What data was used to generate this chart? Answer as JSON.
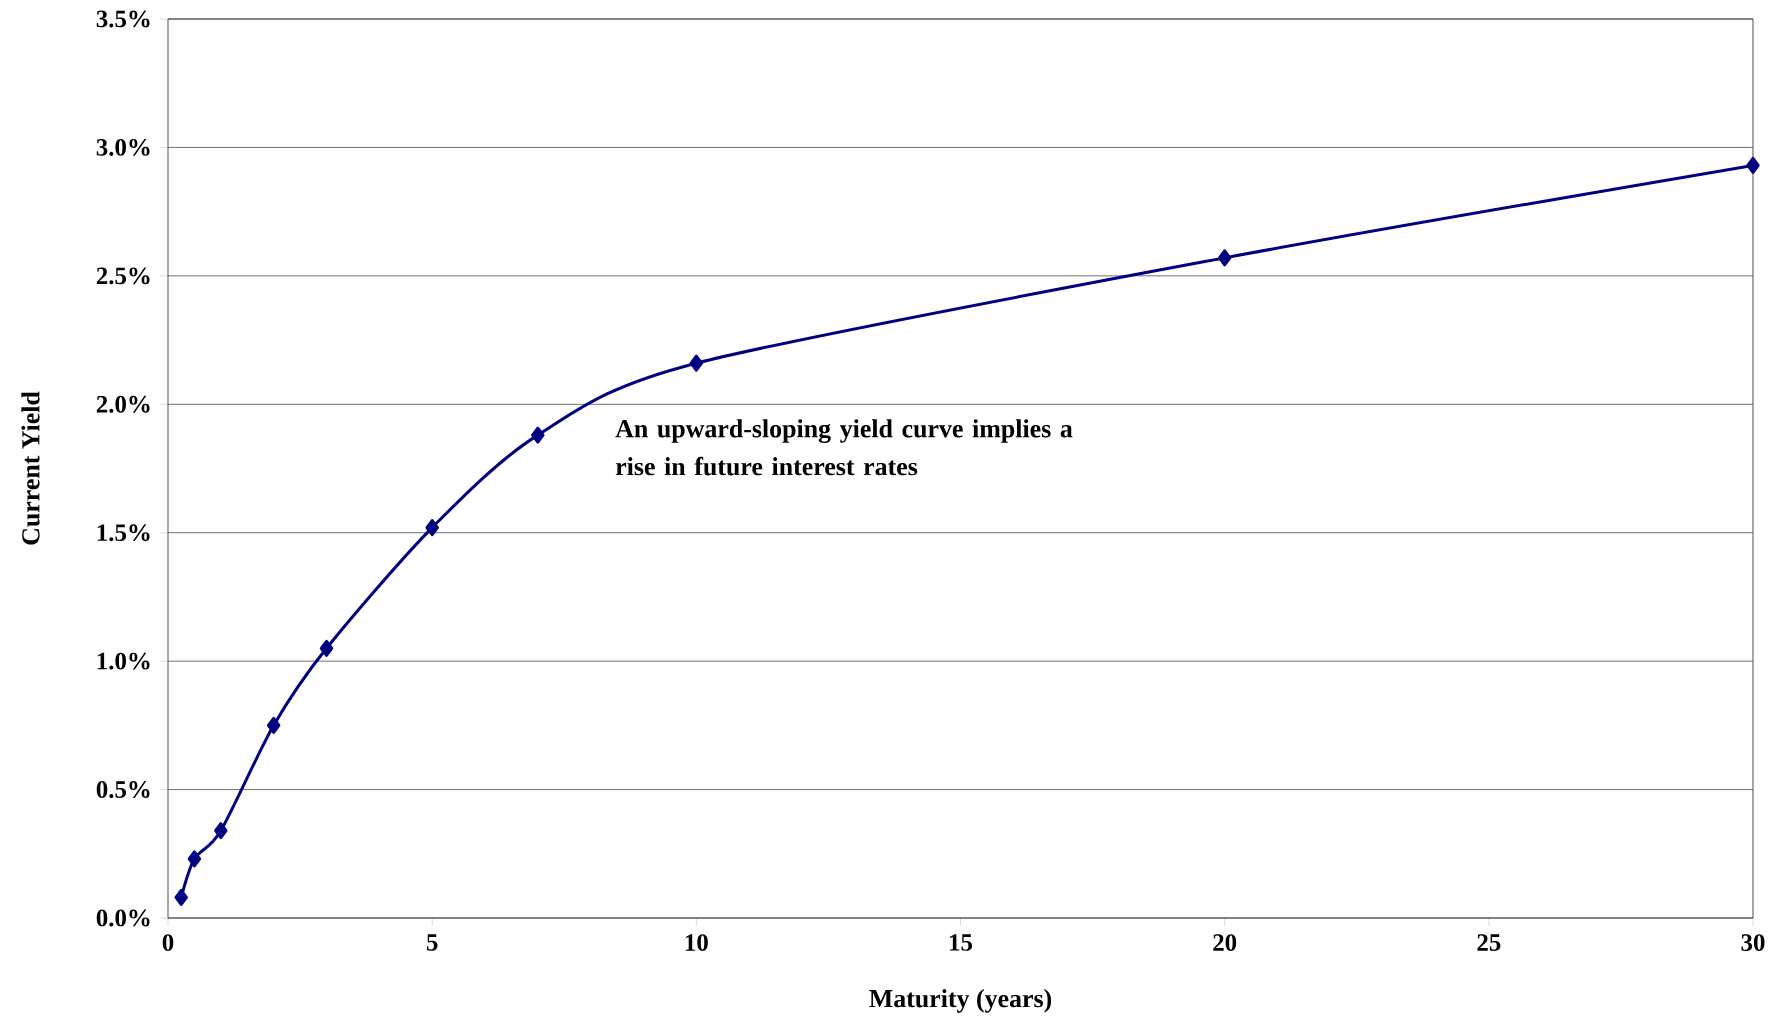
{
  "chart_data": {
    "type": "line",
    "x": [
      0.25,
      0.5,
      1,
      2,
      3,
      5,
      7,
      10,
      20,
      30
    ],
    "series": [
      {
        "color": "#000080",
        "values": [
          0.08,
          0.23,
          0.34,
          0.75,
          1.05,
          1.52,
          1.88,
          2.16,
          2.57,
          2.93
        ]
      }
    ],
    "xlabel": "Maturity (years)",
    "ylabel": "Current Yield",
    "xlim": [
      0,
      30
    ],
    "xticks": [
      0,
      5,
      10,
      15,
      20,
      25,
      30
    ],
    "ylim": [
      0,
      3.5
    ],
    "yticks": [
      {
        "value": 0,
        "label": "0.0%"
      },
      {
        "value": 0.5,
        "label": "0.5%"
      },
      {
        "value": 1,
        "label": "1.0%"
      },
      {
        "value": 1.5,
        "label": "1.5%"
      },
      {
        "value": 2,
        "label": "2.0%"
      },
      {
        "value": 2.5,
        "label": "2.5%"
      },
      {
        "value": 3,
        "label": "3.0%"
      },
      {
        "value": 3.5,
        "label": "3.5%"
      }
    ],
    "annotations": [
      "An upward-sloping yield curve implies a rise in future interest rates"
    ],
    "grid": "y",
    "marker": "diamond",
    "line_style": "solid"
  }
}
